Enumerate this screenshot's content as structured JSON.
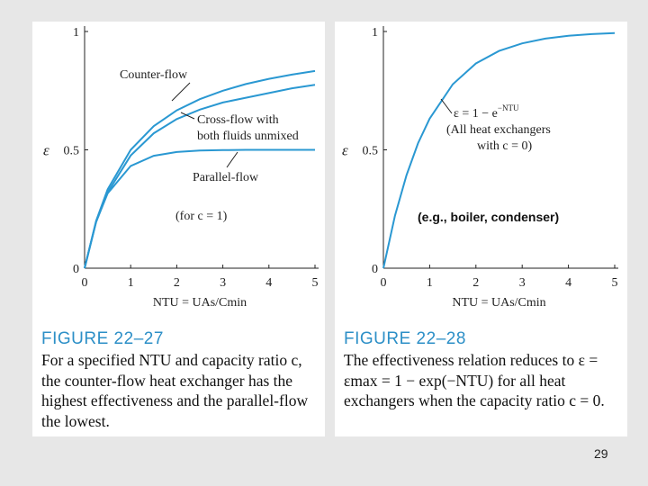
{
  "chart_data": [
    {
      "type": "line",
      "figure_label": "FIGURE 22–27",
      "caption": "For a specified NTU and capacity ratio c, the counter-flow heat exchanger has the highest effectiveness and the parallel-flow the lowest.",
      "xlabel": "NTU = UAs/Cmin",
      "ylabel": "ε",
      "xlim": [
        0,
        5
      ],
      "ylim": [
        0,
        1
      ],
      "x_ticks": [
        "0",
        "1",
        "2",
        "3",
        "4",
        "5"
      ],
      "y_ticks": [
        "0",
        "0.5",
        "1"
      ],
      "condition_note": "(for c = 1)",
      "series": [
        {
          "name": "Counter-flow",
          "x": [
            0,
            0.25,
            0.5,
            1,
            1.5,
            2,
            2.5,
            3,
            3.5,
            4,
            4.5,
            5
          ],
          "y": [
            0,
            0.2,
            0.333,
            0.5,
            0.6,
            0.667,
            0.714,
            0.75,
            0.778,
            0.8,
            0.818,
            0.833
          ]
        },
        {
          "name": "Cross-flow with both fluids unmixed",
          "x": [
            0,
            0.25,
            0.5,
            1,
            1.5,
            2,
            2.5,
            3,
            3.5,
            4,
            4.5,
            5
          ],
          "y": [
            0,
            0.195,
            0.32,
            0.476,
            0.57,
            0.63,
            0.67,
            0.7,
            0.72,
            0.74,
            0.76,
            0.775
          ]
        },
        {
          "name": "Parallel-flow",
          "x": [
            0,
            0.25,
            0.5,
            1,
            1.5,
            2,
            2.5,
            3,
            3.5,
            4,
            4.5,
            5
          ],
          "y": [
            0,
            0.197,
            0.316,
            0.432,
            0.475,
            0.491,
            0.497,
            0.499,
            0.5,
            0.5,
            0.5,
            0.5
          ]
        }
      ]
    },
    {
      "type": "line",
      "figure_label": "FIGURE 22–28",
      "caption": "The effectiveness relation reduces to ε = εmax = 1 − exp(−NTU) for all heat exchangers when the capacity ratio c = 0.",
      "xlabel": "NTU = UAs/Cmin",
      "ylabel": "ε",
      "xlim": [
        0,
        5
      ],
      "ylim": [
        0,
        1
      ],
      "x_ticks": [
        "0",
        "1",
        "2",
        "3",
        "4",
        "5"
      ],
      "y_ticks": [
        "0",
        "0.5",
        "1"
      ],
      "annotation": [
        "ε = 1 − e",
        "−NTU",
        "(All heat exchangers",
        "with c = 0)"
      ],
      "series": [
        {
          "name": "ε = 1 − e−NTU",
          "x": [
            0,
            0.25,
            0.5,
            0.75,
            1,
            1.5,
            2,
            2.5,
            3,
            3.5,
            4,
            4.5,
            5
          ],
          "y": [
            0,
            0.221,
            0.393,
            0.528,
            0.632,
            0.777,
            0.865,
            0.918,
            0.95,
            0.97,
            0.982,
            0.989,
            0.993
          ]
        }
      ]
    }
  ],
  "overlay_text": "(e.g., boiler, condenser)",
  "page_number": "29",
  "colors": {
    "curve": "#2a98d2",
    "figure_label": "#2c8fc7",
    "background": "#e7e7e7"
  }
}
